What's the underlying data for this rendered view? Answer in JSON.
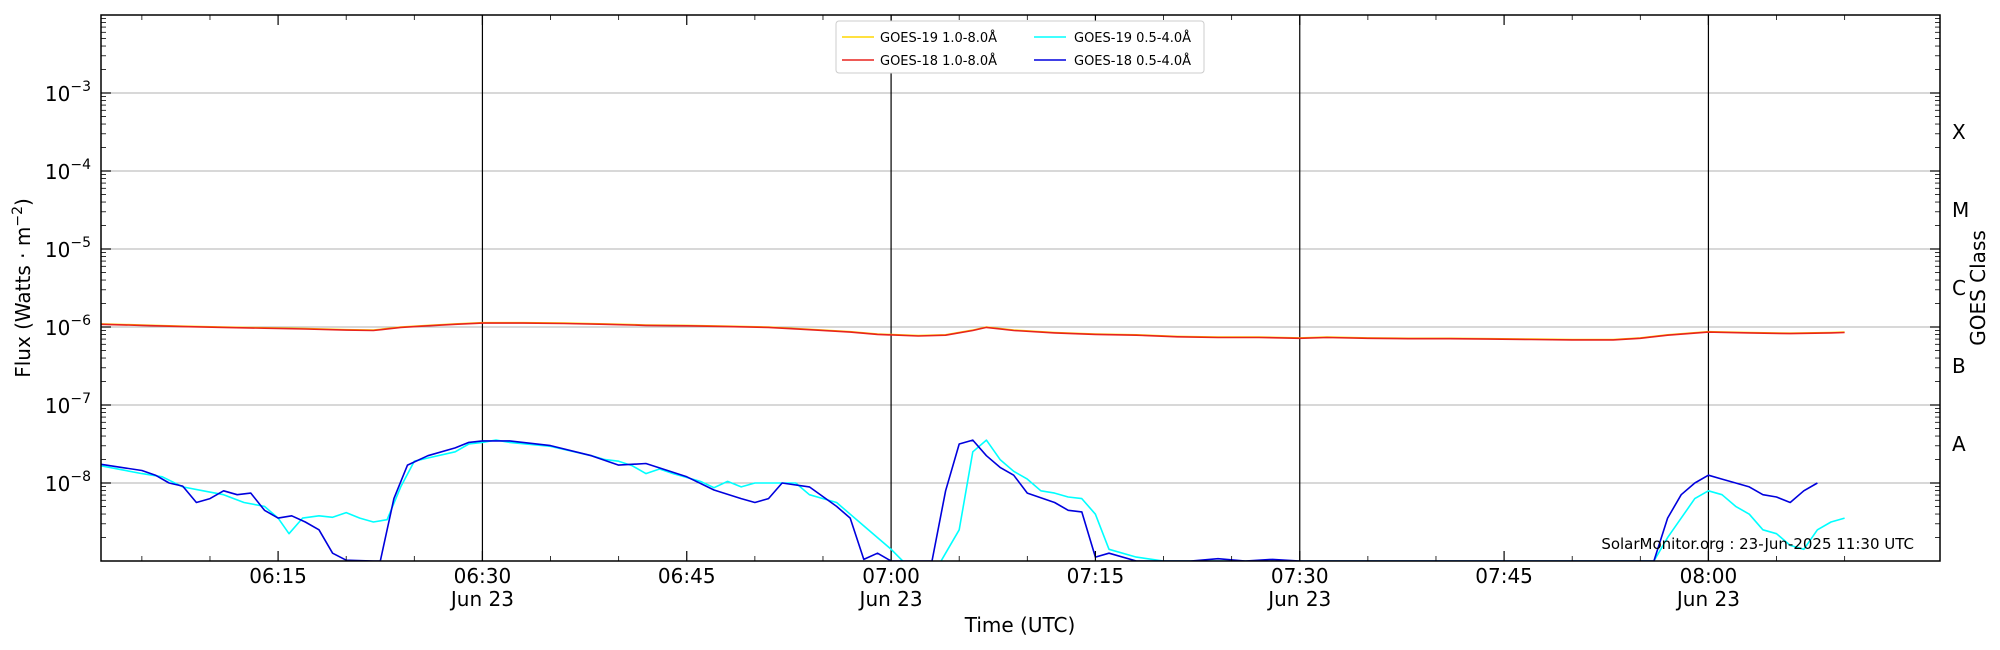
{
  "chart_data": {
    "type": "line",
    "xlabel": "Time (UTC)",
    "ylabel_main": "Flux (Watts · m",
    "ylabel_sup": "−2",
    "ylabel_close": ")",
    "right_ylabel": "GOES Class",
    "y_scale": "log",
    "ylim_exp": [
      -9,
      -2
    ],
    "xlim_min": [
      0,
      135
    ],
    "x_start_time": "06:02",
    "x_ticks": [
      {
        "min": 13,
        "time": "06:15",
        "date": ""
      },
      {
        "min": 28,
        "time": "06:30",
        "date": "Jun 23"
      },
      {
        "min": 43,
        "time": "06:45",
        "date": ""
      },
      {
        "min": 58,
        "time": "07:00",
        "date": "Jun 23"
      },
      {
        "min": 73,
        "time": "07:15",
        "date": ""
      },
      {
        "min": 88,
        "time": "07:30",
        "date": "Jun 23"
      },
      {
        "min": 103,
        "time": "07:45",
        "date": ""
      },
      {
        "min": 118,
        "time": "08:00",
        "date": "Jun 23"
      }
    ],
    "y_ticks": [
      {
        "exp": -8,
        "base": "10",
        "sup": "−8"
      },
      {
        "exp": -7,
        "base": "10",
        "sup": "−7"
      },
      {
        "exp": -6,
        "base": "10",
        "sup": "−6"
      },
      {
        "exp": -5,
        "base": "10",
        "sup": "−5"
      },
      {
        "exp": -4,
        "base": "10",
        "sup": "−4"
      },
      {
        "exp": -3,
        "base": "10",
        "sup": "−3"
      }
    ],
    "goes_classes": [
      {
        "label": "A",
        "exp": -7.5
      },
      {
        "label": "B",
        "exp": -6.5
      },
      {
        "label": "C",
        "exp": -5.5
      },
      {
        "label": "M",
        "exp": -4.5
      },
      {
        "label": "X",
        "exp": -3.5
      }
    ],
    "grid": "horizontal-at-decades",
    "vertical_lines_at_min": [
      28,
      58,
      88,
      118
    ],
    "legend_position": "top-center",
    "series": [
      {
        "name": "GOES-19 1.0-8.0Å",
        "color": "#FFD700",
        "log_flux": [
          [
            0,
            -5.96
          ],
          [
            3,
            -5.975
          ],
          [
            6,
            -5.99
          ],
          [
            9,
            -6.0
          ],
          [
            12,
            -6.01
          ],
          [
            15,
            -6.02
          ],
          [
            18,
            -6.035
          ],
          [
            20,
            -6.04
          ],
          [
            22,
            -6.0
          ],
          [
            24,
            -5.98
          ],
          [
            26,
            -5.96
          ],
          [
            28,
            -5.945
          ],
          [
            31,
            -5.945
          ],
          [
            34,
            -5.95
          ],
          [
            37,
            -5.96
          ],
          [
            40,
            -5.975
          ],
          [
            43,
            -5.98
          ],
          [
            46,
            -5.99
          ],
          [
            49,
            -6.0
          ],
          [
            52,
            -6.03
          ],
          [
            55,
            -6.06
          ],
          [
            57,
            -6.09
          ],
          [
            60,
            -6.11
          ],
          [
            62,
            -6.1
          ],
          [
            64,
            -6.04
          ],
          [
            65,
            -6.0
          ],
          [
            67,
            -6.04
          ],
          [
            70,
            -6.07
          ],
          [
            73,
            -6.09
          ],
          [
            76,
            -6.1
          ],
          [
            79,
            -6.12
          ],
          [
            82,
            -6.13
          ],
          [
            85,
            -6.13
          ],
          [
            88,
            -6.14
          ],
          [
            90,
            -6.13
          ],
          [
            93,
            -6.14
          ],
          [
            96,
            -6.145
          ],
          [
            99,
            -6.145
          ],
          [
            102,
            -6.15
          ],
          [
            105,
            -6.155
          ],
          [
            108,
            -6.16
          ],
          [
            111,
            -6.16
          ],
          [
            113,
            -6.14
          ],
          [
            115,
            -6.1
          ],
          [
            118,
            -6.06
          ],
          [
            121,
            -6.07
          ],
          [
            124,
            -6.08
          ],
          [
            127,
            -6.07
          ],
          [
            128,
            -6.065
          ]
        ]
      },
      {
        "name": "GOES-18 1.0-8.0Å",
        "color": "#E8231E",
        "log_flux": [
          [
            0,
            -5.965
          ],
          [
            3,
            -5.98
          ],
          [
            6,
            -5.995
          ],
          [
            9,
            -6.005
          ],
          [
            12,
            -6.015
          ],
          [
            15,
            -6.025
          ],
          [
            18,
            -6.04
          ],
          [
            20,
            -6.045
          ],
          [
            22,
            -6.005
          ],
          [
            24,
            -5.985
          ],
          [
            26,
            -5.965
          ],
          [
            28,
            -5.95
          ],
          [
            31,
            -5.95
          ],
          [
            34,
            -5.955
          ],
          [
            37,
            -5.965
          ],
          [
            40,
            -5.98
          ],
          [
            43,
            -5.985
          ],
          [
            46,
            -5.995
          ],
          [
            49,
            -6.005
          ],
          [
            52,
            -6.035
          ],
          [
            55,
            -6.065
          ],
          [
            57,
            -6.095
          ],
          [
            60,
            -6.115
          ],
          [
            62,
            -6.105
          ],
          [
            64,
            -6.045
          ],
          [
            65,
            -6.005
          ],
          [
            67,
            -6.045
          ],
          [
            70,
            -6.075
          ],
          [
            73,
            -6.095
          ],
          [
            76,
            -6.105
          ],
          [
            79,
            -6.125
          ],
          [
            82,
            -6.135
          ],
          [
            85,
            -6.135
          ],
          [
            88,
            -6.145
          ],
          [
            90,
            -6.135
          ],
          [
            93,
            -6.145
          ],
          [
            96,
            -6.15
          ],
          [
            99,
            -6.15
          ],
          [
            102,
            -6.155
          ],
          [
            105,
            -6.16
          ],
          [
            108,
            -6.165
          ],
          [
            111,
            -6.165
          ],
          [
            113,
            -6.145
          ],
          [
            115,
            -6.105
          ],
          [
            118,
            -6.065
          ],
          [
            121,
            -6.075
          ],
          [
            124,
            -6.085
          ],
          [
            127,
            -6.075
          ],
          [
            128,
            -6.07
          ]
        ]
      },
      {
        "name": "GOES-19 0.5-4.0Å",
        "color": "#00FFFF",
        "log_flux": [
          [
            0,
            -7.78
          ],
          [
            1.5,
            -7.83
          ],
          [
            3,
            -7.88
          ],
          [
            4.5,
            -7.92
          ],
          [
            6,
            -8.05
          ],
          [
            7.5,
            -8.1
          ],
          [
            9,
            -8.15
          ],
          [
            10.5,
            -8.25
          ],
          [
            12,
            -8.3
          ],
          [
            13,
            -8.45
          ],
          [
            13.8,
            -8.65
          ],
          [
            14.8,
            -8.45
          ],
          [
            16,
            -8.42
          ],
          [
            17,
            -8.44
          ],
          [
            18,
            -8.38
          ],
          [
            19,
            -8.45
          ],
          [
            20,
            -8.5
          ],
          [
            21,
            -8.47
          ],
          [
            22,
            -8.05
          ],
          [
            23,
            -7.72
          ],
          [
            24,
            -7.68
          ],
          [
            26,
            -7.6
          ],
          [
            27,
            -7.5
          ],
          [
            28,
            -7.48
          ],
          [
            29,
            -7.45
          ],
          [
            30,
            -7.48
          ],
          [
            33,
            -7.53
          ],
          [
            36,
            -7.65
          ],
          [
            37,
            -7.7
          ],
          [
            38,
            -7.72
          ],
          [
            39,
            -7.78
          ],
          [
            40,
            -7.88
          ],
          [
            41,
            -7.82
          ],
          [
            42,
            -7.88
          ],
          [
            43,
            -7.93
          ],
          [
            44,
            -7.98
          ],
          [
            45,
            -8.06
          ],
          [
            46,
            -7.98
          ],
          [
            47,
            -8.05
          ],
          [
            48,
            -8.0
          ],
          [
            49,
            -8.0
          ],
          [
            50,
            -8.0
          ],
          [
            51,
            -8.0
          ],
          [
            52,
            -8.15
          ],
          [
            53,
            -8.2
          ],
          [
            54,
            -8.25
          ],
          [
            55,
            -8.4
          ],
          [
            56,
            -8.55
          ],
          [
            57,
            -8.7
          ],
          [
            58,
            -8.85
          ],
          [
            60,
            -9.2
          ],
          [
            61,
            -9.2
          ],
          [
            62,
            -8.9
          ],
          [
            63,
            -8.6
          ],
          [
            64,
            -7.6
          ],
          [
            65,
            -7.45
          ],
          [
            66,
            -7.7
          ],
          [
            67,
            -7.85
          ],
          [
            68,
            -7.95
          ],
          [
            69,
            -8.1
          ],
          [
            70,
            -8.13
          ],
          [
            71,
            -8.18
          ],
          [
            72,
            -8.2
          ],
          [
            73,
            -8.4
          ],
          [
            74,
            -8.85
          ],
          [
            76,
            -8.95
          ],
          [
            78,
            -9.0
          ],
          [
            84,
            -9.0
          ],
          [
            90,
            -9.0
          ],
          [
            100,
            -9.0
          ],
          [
            110,
            -9.0
          ],
          [
            114,
            -9.0
          ],
          [
            115,
            -8.7
          ],
          [
            116,
            -8.45
          ],
          [
            117,
            -8.2
          ],
          [
            118,
            -8.1
          ],
          [
            119,
            -8.15
          ],
          [
            120,
            -8.3
          ],
          [
            121,
            -8.4
          ],
          [
            122,
            -8.6
          ],
          [
            123,
            -8.65
          ],
          [
            124,
            -8.8
          ],
          [
            125,
            -8.85
          ],
          [
            126,
            -8.6
          ],
          [
            127,
            -8.5
          ],
          [
            128,
            -8.45
          ]
        ]
      },
      {
        "name": "GOES-18 0.5-4.0Å",
        "color": "#0000DD",
        "log_flux": [
          [
            0,
            -7.76
          ],
          [
            1.5,
            -7.8
          ],
          [
            3,
            -7.84
          ],
          [
            4,
            -7.9
          ],
          [
            5,
            -8.0
          ],
          [
            6,
            -8.04
          ],
          [
            7,
            -8.25
          ],
          [
            8,
            -8.2
          ],
          [
            9,
            -8.1
          ],
          [
            10,
            -8.15
          ],
          [
            11,
            -8.13
          ],
          [
            12,
            -8.35
          ],
          [
            13,
            -8.45
          ],
          [
            14,
            -8.42
          ],
          [
            15,
            -8.5
          ],
          [
            16,
            -8.6
          ],
          [
            17,
            -8.9
          ],
          [
            18,
            -8.99
          ],
          [
            20,
            -9.0
          ],
          [
            20.5,
            -9.0
          ],
          [
            21.5,
            -8.2
          ],
          [
            22.5,
            -7.77
          ],
          [
            24,
            -7.65
          ],
          [
            26,
            -7.55
          ],
          [
            27,
            -7.48
          ],
          [
            28,
            -7.46
          ],
          [
            30,
            -7.46
          ],
          [
            33,
            -7.52
          ],
          [
            36,
            -7.65
          ],
          [
            38,
            -7.77
          ],
          [
            40,
            -7.75
          ],
          [
            43,
            -7.92
          ],
          [
            45,
            -8.09
          ],
          [
            47,
            -8.2
          ],
          [
            48,
            -8.25
          ],
          [
            49,
            -8.2
          ],
          [
            50,
            -8.0
          ],
          [
            52,
            -8.05
          ],
          [
            54,
            -8.3
          ],
          [
            55,
            -8.45
          ],
          [
            56,
            -8.98
          ],
          [
            57,
            -8.9
          ],
          [
            58,
            -9.0
          ],
          [
            60,
            -9.0
          ],
          [
            61,
            -9.0
          ],
          [
            62,
            -8.1
          ],
          [
            63,
            -7.5
          ],
          [
            64,
            -7.45
          ],
          [
            65,
            -7.65
          ],
          [
            66,
            -7.8
          ],
          [
            67,
            -7.9
          ],
          [
            68,
            -8.13
          ],
          [
            70,
            -8.25
          ],
          [
            71,
            -8.35
          ],
          [
            72,
            -8.37
          ],
          [
            73,
            -8.95
          ],
          [
            74,
            -8.9
          ],
          [
            76,
            -9.0
          ],
          [
            80,
            -9.0
          ],
          [
            82,
            -8.97
          ],
          [
            84,
            -9.0
          ],
          [
            86,
            -8.98
          ],
          [
            88,
            -9.0
          ],
          [
            100,
            -9.0
          ],
          [
            110,
            -9.0
          ],
          [
            114,
            -9.0
          ],
          [
            115,
            -8.45
          ],
          [
            116,
            -8.15
          ],
          [
            117,
            -8.0
          ],
          [
            118,
            -7.9
          ],
          [
            119,
            -7.95
          ],
          [
            120,
            -8.0
          ],
          [
            121,
            -8.05
          ],
          [
            122,
            -8.15
          ],
          [
            123,
            -8.18
          ],
          [
            124,
            -8.25
          ],
          [
            125,
            -8.1
          ],
          [
            126,
            -8.0
          ]
        ]
      }
    ],
    "credit": "SolarMonitor.org : 23-Jun-2025 11:30 UTC"
  }
}
